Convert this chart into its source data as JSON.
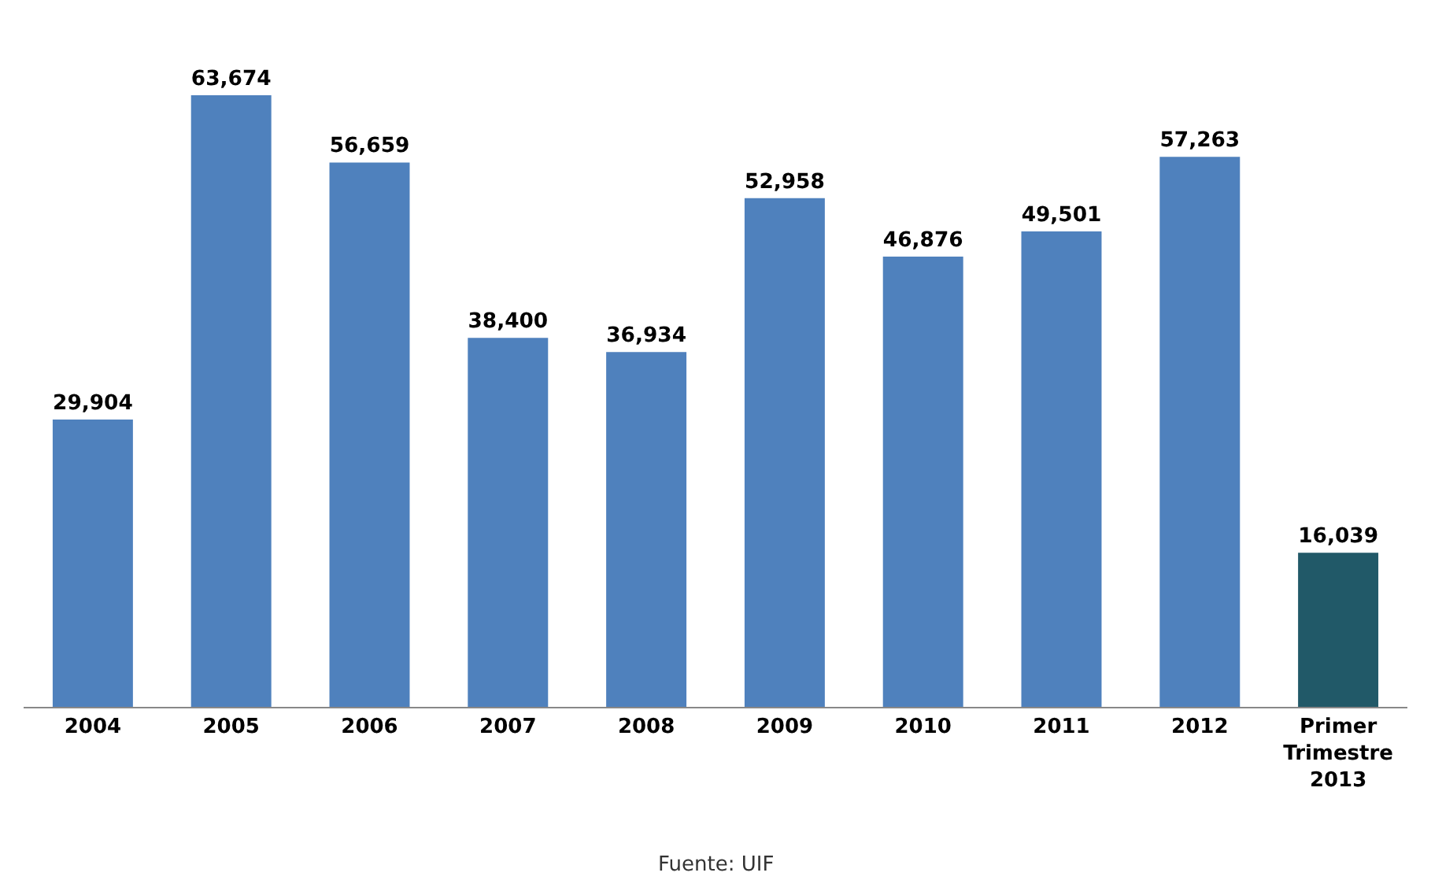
{
  "chart_data": {
    "type": "bar",
    "categories": [
      "2004",
      "2005",
      "2006",
      "2007",
      "2008",
      "2009",
      "2010",
      "2011",
      "2012",
      "Primer Trimestre 2013"
    ],
    "values": [
      29904,
      63674,
      56659,
      38400,
      36934,
      52958,
      46876,
      49501,
      57263,
      16039
    ],
    "colors": [
      "#4f81bd",
      "#4f81bd",
      "#4f81bd",
      "#4f81bd",
      "#4f81bd",
      "#4f81bd",
      "#4f81bd",
      "#4f81bd",
      "#4f81bd",
      "#215968"
    ],
    "value_labels": [
      "29,904",
      "63,674",
      "56,659",
      "38,400",
      "36,934",
      "52,958",
      "46,876",
      "49,501",
      "57,263",
      "16,039"
    ],
    "tick_labels": "x",
    "grid": false,
    "annotations": [
      "Fuente: UIF"
    ]
  }
}
